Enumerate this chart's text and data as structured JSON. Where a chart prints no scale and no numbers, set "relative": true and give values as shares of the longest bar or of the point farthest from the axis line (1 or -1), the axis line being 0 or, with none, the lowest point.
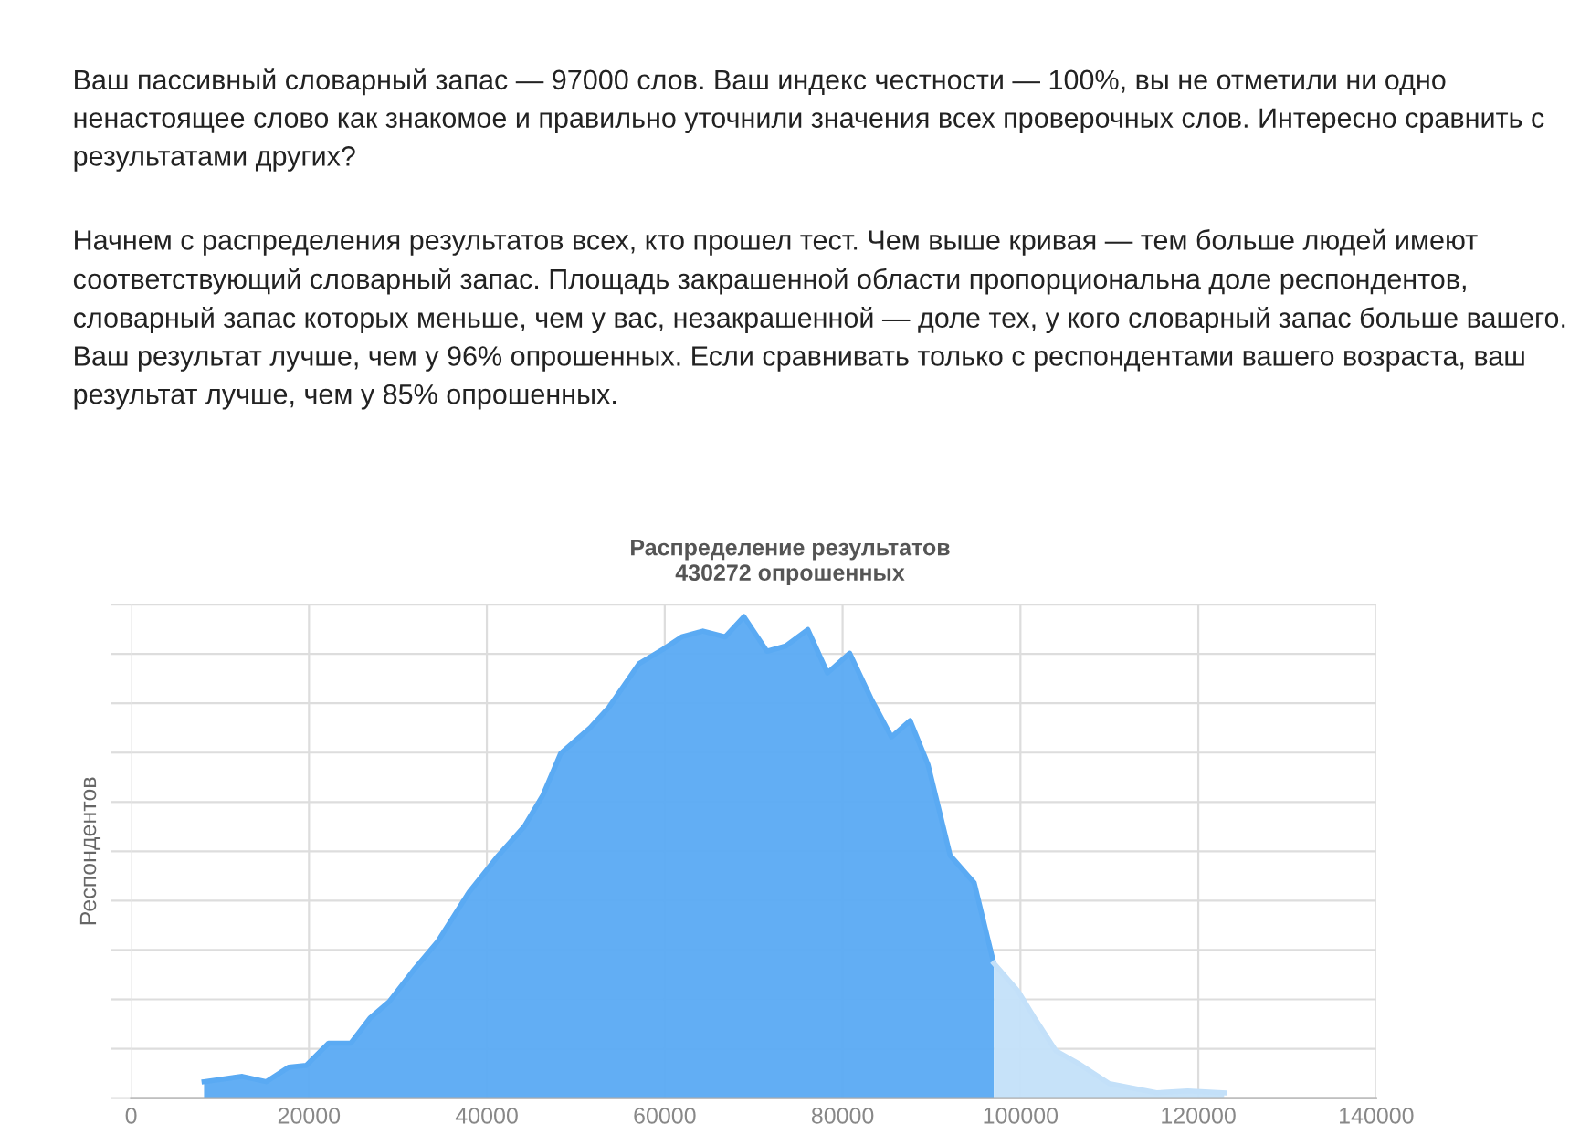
{
  "chart_data": {
    "type": "area",
    "title": "Распределение результатов",
    "subtitle": "430272 опрошенных",
    "ylabel": "Респондентов",
    "annotations": [
      "Ваш пассивный словарный запас — 97000 слов. Ваш индекс честности — 100%, вы не отметили ни одно ненастоящее слово как знакомое и правильно уточнили значения всех проверочных слов. Интересно сравнить с результатами других?",
      "Начнем с распределения результатов всех, кто прошел тест. Чем выше кривая — тем больше людей имеют соответствующий словарный запас. Площадь закрашенной области пропорциональна доле респондентов, словарный запас которых меньше, чем у вас, незакрашенной — доле тех, у кого словарный запас больше вашего. Ваш результат лучше, чем у 96% опрошенных. Если сравнивать только с респондентами вашего возраста, ваш результат лучше, чем у 85% опрошенных."
    ],
    "relative": true,
    "xlim": [
      0,
      140000
    ],
    "xticks": [
      0,
      20000,
      40000,
      60000,
      80000,
      100000,
      120000,
      140000
    ],
    "grid": true,
    "legend": false,
    "series": [
      {
        "color": "#5aaaf3",
        "x": [
          8200,
          12500,
          15200,
          17700,
          19700,
          22200,
          24700,
          26900,
          29000,
          31900,
          34500,
          38000,
          41300,
          44200,
          46300,
          48300,
          51600,
          53700,
          57100,
          59800,
          61900,
          64300,
          66800,
          68900,
          71500,
          73600,
          76100,
          78300,
          80800,
          83200,
          85500,
          87600,
          89600,
          92100,
          94800,
          97000
        ],
        "values": [
          0.034,
          0.045,
          0.034,
          0.064,
          0.068,
          0.114,
          0.114,
          0.167,
          0.2,
          0.269,
          0.326,
          0.428,
          0.504,
          0.564,
          0.629,
          0.716,
          0.769,
          0.811,
          0.902,
          0.932,
          0.958,
          0.97,
          0.958,
          1,
          0.928,
          0.939,
          0.973,
          0.883,
          0.924,
          0.83,
          0.75,
          0.784,
          0.693,
          0.504,
          0.447,
          0.28
        ]
      },
      {
        "color": "#c3e0f9",
        "x": [
          97000,
          99700,
          101700,
          104000,
          106500,
          110000,
          115300,
          118800,
          122900
        ],
        "values": [
          0.28,
          0.223,
          0.163,
          0.098,
          0.072,
          0.03,
          0.011,
          0.015,
          0.011
        ]
      }
    ]
  }
}
